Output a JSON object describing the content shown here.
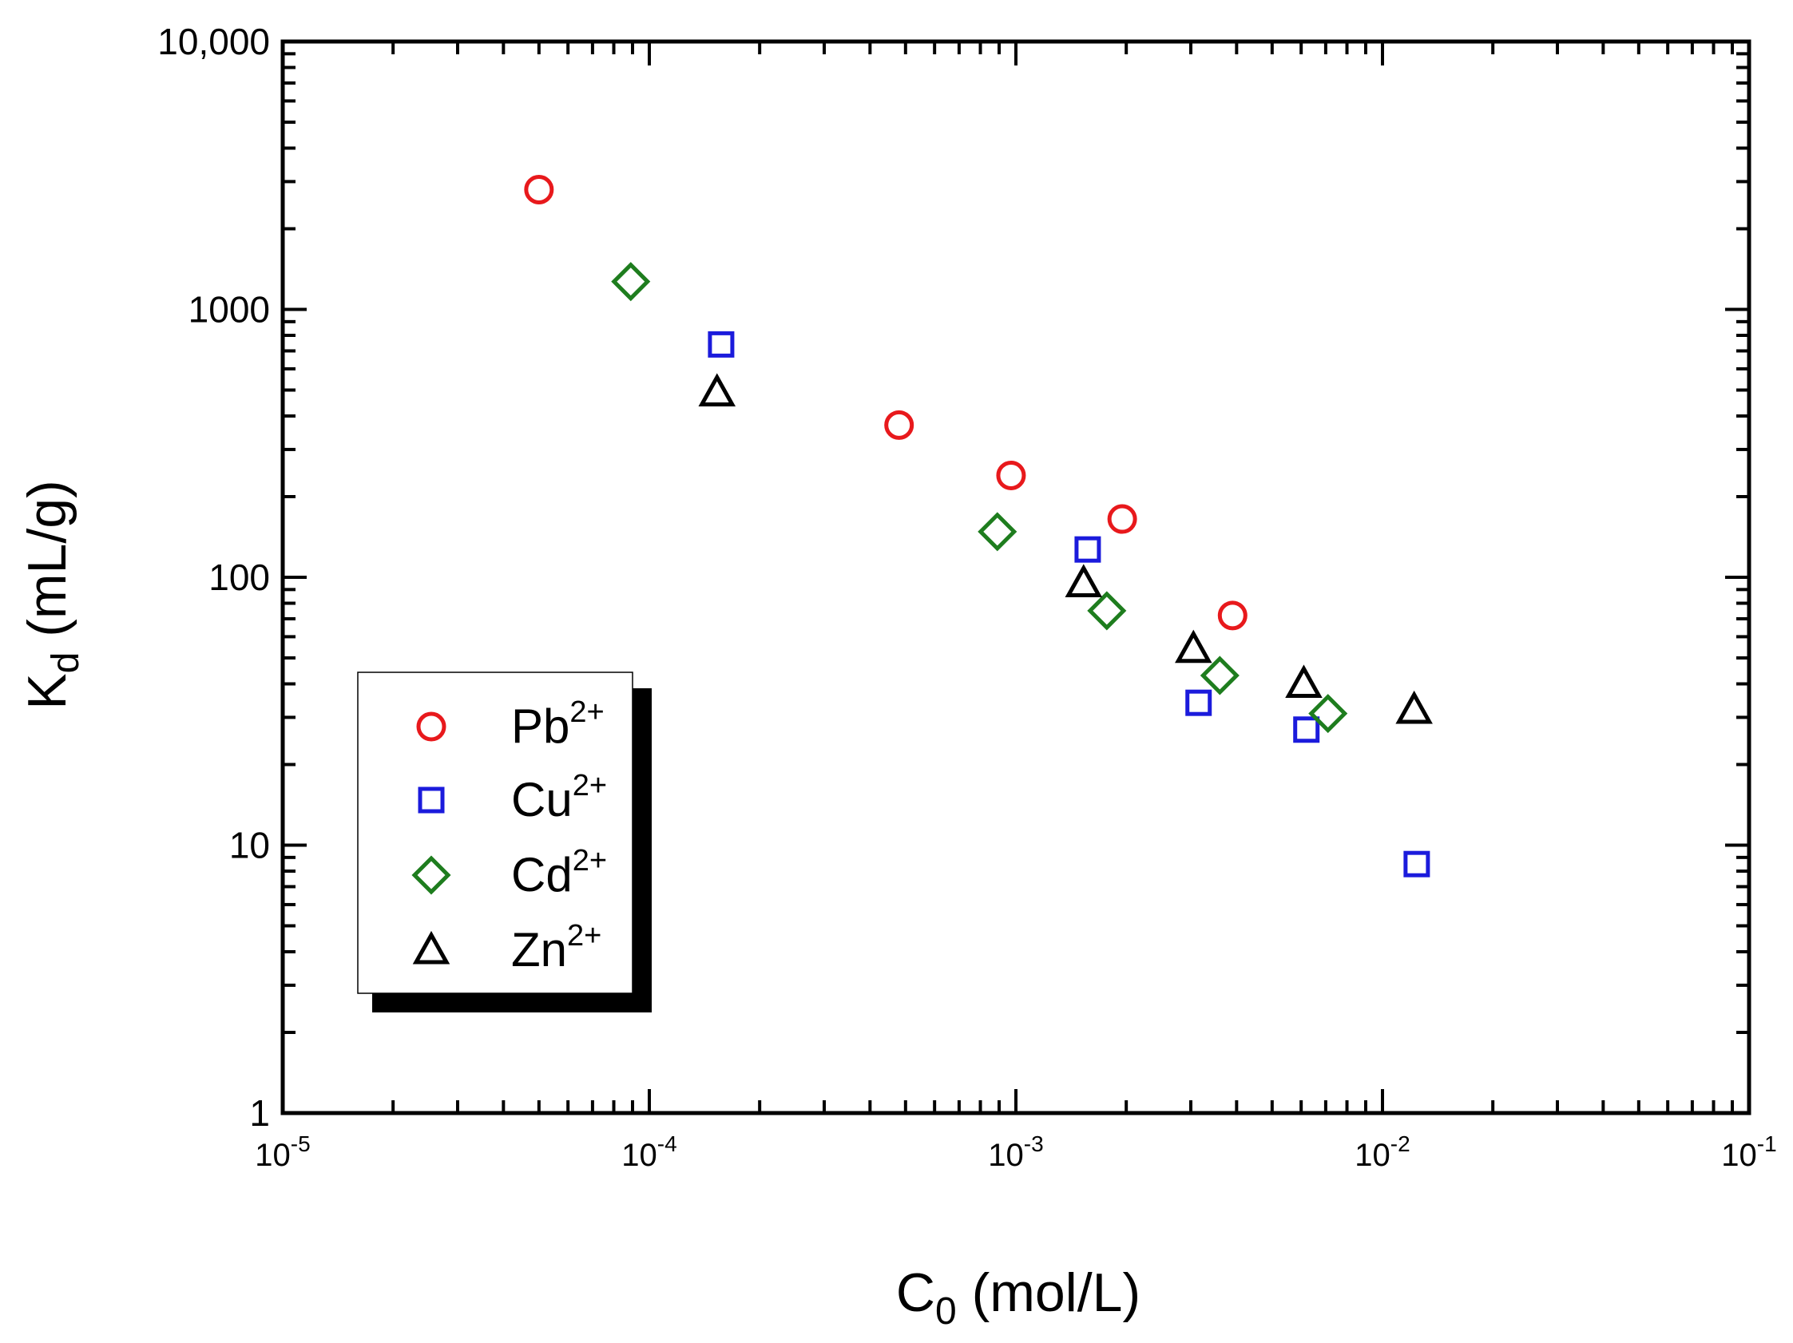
{
  "chart_data": {
    "type": "scatter",
    "xscale": "log",
    "yscale": "log",
    "xlim": [
      1e-05,
      0.1
    ],
    "ylim": [
      1,
      10000
    ],
    "xlabel": {
      "main": "C",
      "sub": "0",
      "unit": " (mol/L)"
    },
    "ylabel": {
      "main": "K",
      "sub": "d",
      "unit": " (mL/g)"
    },
    "xticks": [
      {
        "value": 1e-05,
        "base": "10",
        "exp": "-5"
      },
      {
        "value": 0.0001,
        "base": "10",
        "exp": "-4"
      },
      {
        "value": 0.001,
        "base": "10",
        "exp": "-3"
      },
      {
        "value": 0.01,
        "base": "10",
        "exp": "-2"
      },
      {
        "value": 0.1,
        "base": "10",
        "exp": "-1"
      }
    ],
    "yticks": [
      {
        "value": 1,
        "label": "1"
      },
      {
        "value": 10,
        "label": "10"
      },
      {
        "value": 100,
        "label": "100"
      },
      {
        "value": 1000,
        "label": "1000"
      },
      {
        "value": 10000,
        "label": "10,000"
      }
    ],
    "legend_position": "bottom-left",
    "series": [
      {
        "name": "Pb",
        "sup": "2+",
        "marker": "circle",
        "color": "#e8191c",
        "points": [
          [
            5e-05,
            2800
          ],
          [
            0.00048,
            370
          ],
          [
            0.00097,
            240
          ],
          [
            0.00195,
            165
          ],
          [
            0.0039,
            72
          ]
        ]
      },
      {
        "name": "Cu",
        "sup": "2+",
        "marker": "square",
        "color": "#1b1bdc",
        "points": [
          [
            0.000157,
            740
          ],
          [
            0.00157,
            127
          ],
          [
            0.00315,
            34
          ],
          [
            0.0062,
            27
          ],
          [
            0.0124,
            8.5
          ]
        ]
      },
      {
        "name": "Cd",
        "sup": "2+",
        "marker": "diamond",
        "color": "#1e7d1e",
        "points": [
          [
            8.9e-05,
            1270
          ],
          [
            0.00089,
            148
          ],
          [
            0.00177,
            75
          ],
          [
            0.0036,
            43
          ],
          [
            0.0071,
            31
          ]
        ]
      },
      {
        "name": "Zn",
        "sup": "2+",
        "marker": "triangle",
        "color": "#000000",
        "points": [
          [
            0.000153,
            490
          ],
          [
            0.00153,
            95
          ],
          [
            0.00305,
            54
          ],
          [
            0.0061,
            40
          ],
          [
            0.0122,
            32
          ]
        ]
      }
    ]
  }
}
